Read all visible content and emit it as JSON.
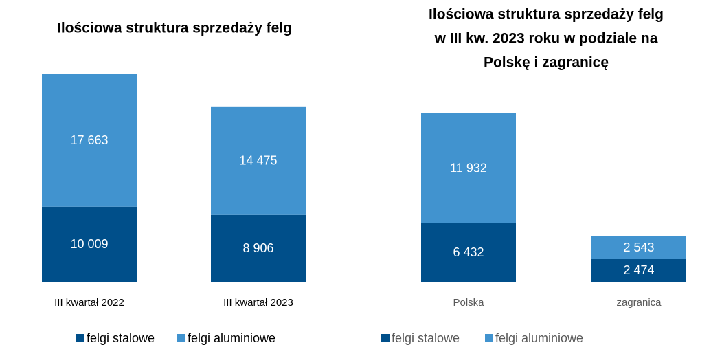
{
  "chart_data": [
    {
      "type": "bar",
      "stacked": true,
      "title": [
        "Ilościowa struktura sprzedaży felg"
      ],
      "categories": [
        "III kwartał 2022",
        "III kwartał 2023"
      ],
      "series": [
        {
          "name": "felgi stalowe",
          "color": "#004f8a",
          "values": [
            10009,
            8906
          ],
          "value_labels": [
            "10 009",
            "8 906"
          ]
        },
        {
          "name": "felgi aluminiowe",
          "color": "#4193cf",
          "values": [
            17663,
            14475
          ],
          "value_labels": [
            "17 663",
            "14 475"
          ]
        }
      ]
    },
    {
      "type": "bar",
      "stacked": true,
      "title": [
        "Ilościowa struktura sprzedaży felg",
        "w III kw. 2023 roku w podziale na",
        "Polskę i zagranicę"
      ],
      "categories": [
        "Polska",
        "zagranica"
      ],
      "series": [
        {
          "name": "felgi stalowe",
          "color": "#004f8a",
          "values": [
            6432,
            2474
          ],
          "value_labels": [
            "6 432",
            "2 474"
          ]
        },
        {
          "name": "felgi aluminiowe",
          "color": "#4193cf",
          "values": [
            11932,
            2543
          ],
          "value_labels": [
            "11 932",
            "2 543"
          ]
        }
      ]
    }
  ]
}
